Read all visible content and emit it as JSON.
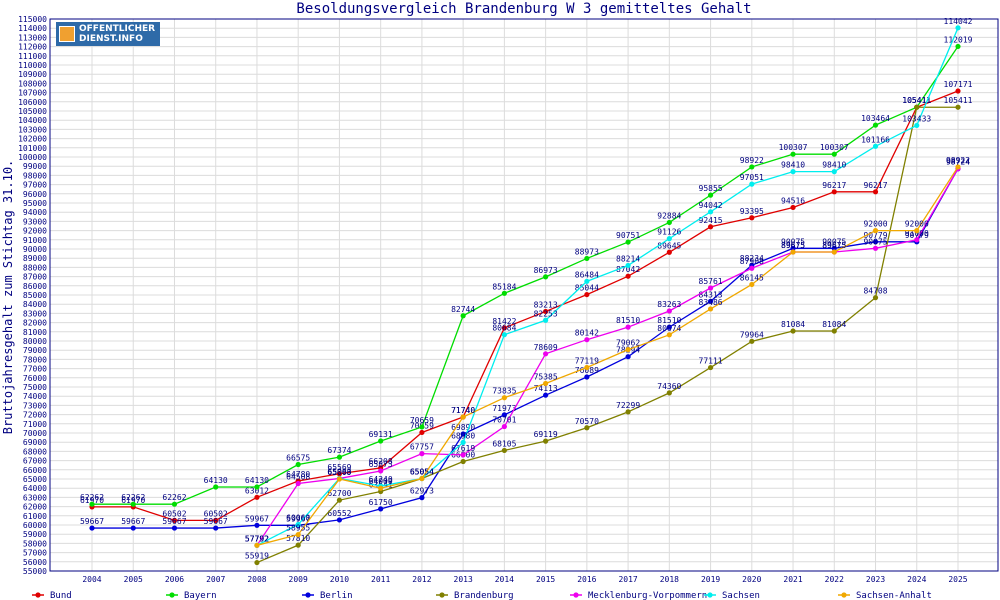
{
  "logo": {
    "line1": "OFFENTLICHER",
    "line2": "DIENST.INFO"
  },
  "chart_data": {
    "type": "line",
    "title": "Besoldungsvergleich Brandenburg W 3 gemitteltes Gehalt",
    "xlabel": "",
    "ylabel": "Bruttojahresgehalt zum Stichtag 31.10.",
    "ylim": [
      55000,
      115000
    ],
    "ytick_step": 1000,
    "grid": true,
    "legend_position": "bottom",
    "x": [
      "2004",
      "2005",
      "2006",
      "2007",
      "2008",
      "2009",
      "2010",
      "2011",
      "2012",
      "2013",
      "2014",
      "2015",
      "2016",
      "2017",
      "2018",
      "2019",
      "2020",
      "2021",
      "2022",
      "2023",
      "2024",
      "2025"
    ],
    "series": [
      {
        "name": "Bund",
        "color": "#e00000",
        "values": [
          61970,
          61970,
          60502,
          60502,
          63012,
          64780,
          65569,
          66208,
          70059,
          71740,
          81422,
          83213,
          85044,
          87042,
          89645,
          92415,
          93395,
          94516,
          96217,
          96217,
          105411,
          107171
        ]
      },
      {
        "name": "Bayern",
        "color": "#00dd00",
        "values": [
          62262,
          62262,
          62262,
          64130,
          64130,
          66575,
          67374,
          69131,
          70659,
          82744,
          85184,
          86973,
          88973,
          90751,
          92884,
          95855,
          98922,
          100307,
          100307,
          103464,
          105411,
          112019
        ]
      },
      {
        "name": "Berlin",
        "color": "#0000dd",
        "values": [
          59667,
          59667,
          59667,
          59667,
          59967,
          59967,
          60552,
          61750,
          62973,
          69890,
          71973,
          74113,
          76089,
          78294,
          81510,
          84313,
          88234,
          90075,
          90075,
          90779,
          90779,
          98724
        ]
      },
      {
        "name": "Brandenburg",
        "color": "#808000",
        "values": [
          null,
          null,
          null,
          null,
          55919,
          57810,
          62700,
          63641,
          65054,
          66900,
          68105,
          69119,
          70570,
          72299,
          74360,
          77111,
          79964,
          81084,
          81084,
          84708,
          105411,
          105411
        ]
      },
      {
        "name": "Mecklenburg-Vorpommern",
        "color": "#ee00ee",
        "values": [
          null,
          null,
          null,
          null,
          57792,
          64508,
          65063,
          65873,
          67757,
          67619,
          70701,
          78609,
          80142,
          81510,
          83263,
          85761,
          87908,
          89675,
          89675,
          90075,
          91000,
          98724
        ]
      },
      {
        "name": "Sachsen",
        "color": "#00eeee",
        "values": [
          null,
          null,
          null,
          null,
          57792,
          60060,
          65063,
          64240,
          65054,
          68980,
          80684,
          82253,
          86484,
          88214,
          91126,
          94042,
          97051,
          98410,
          98410,
          101166,
          103433,
          114042
        ]
      },
      {
        "name": "Sachsen-Anhalt",
        "color": "#f0a800",
        "values": [
          null,
          null,
          null,
          null,
          57792,
          58955,
          65000,
          64000,
          65054,
          71740,
          73835,
          75385,
          77119,
          79062,
          80674,
          83486,
          86145,
          89675,
          89675,
          92000,
          92000,
          98922
        ]
      }
    ]
  }
}
